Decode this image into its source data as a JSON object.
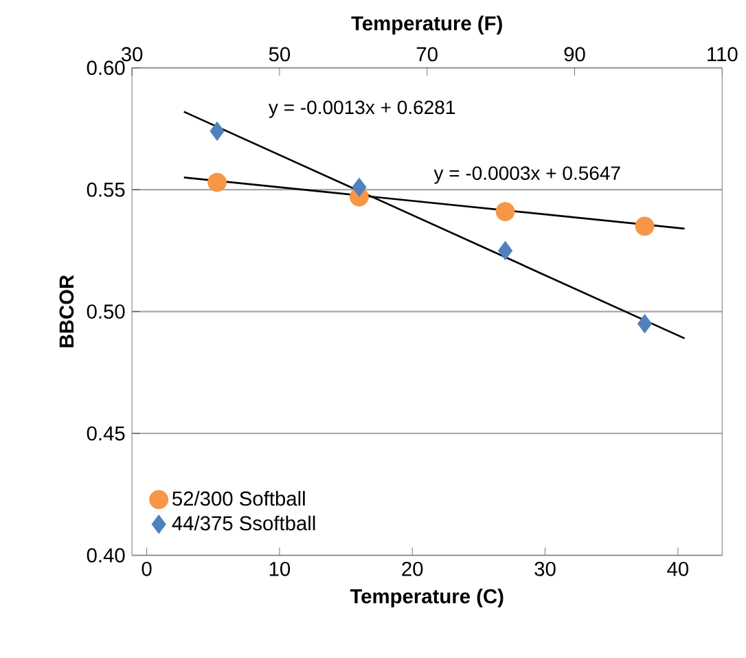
{
  "chart_data": {
    "type": "scatter",
    "xlabel": "Temperature (C)",
    "x2label": "Temperature (F)",
    "ylabel": "BBCOR",
    "xlim": [
      -1.111,
      43.333
    ],
    "xticks": [
      0,
      10,
      20,
      30,
      40
    ],
    "x2lim": [
      30,
      110
    ],
    "x2ticks": [
      30,
      50,
      70,
      90,
      110
    ],
    "ylim": [
      0.4,
      0.6
    ],
    "yticks": [
      {
        "value": 0.4,
        "label": "0.40"
      },
      {
        "value": 0.45,
        "label": "0.45"
      },
      {
        "value": 0.5,
        "label": "0.50"
      },
      {
        "value": 0.55,
        "label": "0.55"
      },
      {
        "value": 0.6,
        "label": "0.60"
      }
    ],
    "grid": "y",
    "legend": "bottom left",
    "series": [
      {
        "name": "52/300 Softball",
        "color": "#f79646",
        "marker": "circle",
        "x": [
          5.3,
          16,
          27,
          37.5
        ],
        "values": [
          0.553,
          0.547,
          0.541,
          0.535
        ]
      },
      {
        "name": "44/375 Ssoftball",
        "color": "#4f81bd",
        "marker": "diamond",
        "x": [
          5.3,
          16,
          27,
          37.5
        ],
        "values": [
          0.574,
          0.551,
          0.525,
          0.495
        ]
      },
      {
        "type": "line",
        "color": "#000000",
        "marker": "none",
        "x": [
          2.8,
          40.5
        ],
        "values": [
          0.582,
          0.489
        ]
      },
      {
        "type": "line",
        "color": "#000000",
        "marker": "none",
        "x": [
          2.8,
          40.5
        ],
        "values": [
          0.555,
          0.534
        ]
      }
    ],
    "annotations": [
      "y = -0.0013x + 0.6281",
      "y = -0.0003x + 0.5647"
    ]
  }
}
